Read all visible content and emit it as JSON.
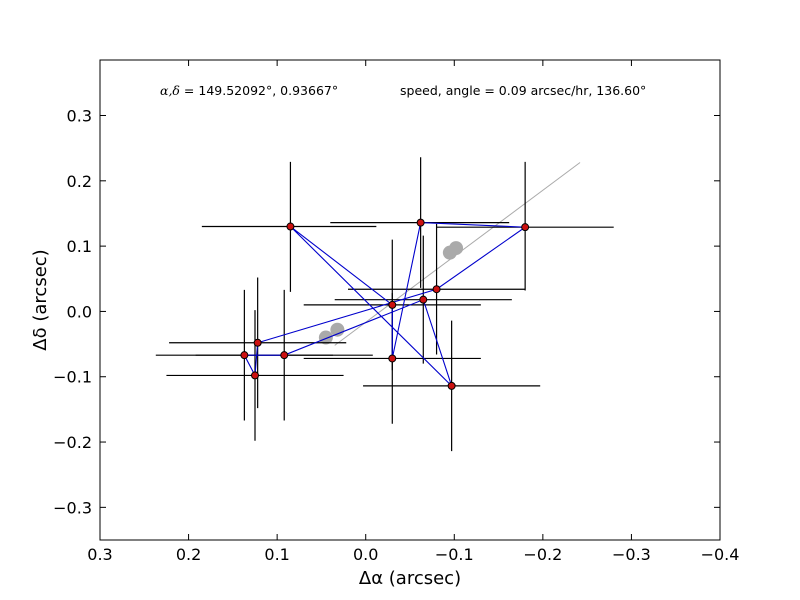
{
  "chart_data": {
    "type": "scatter",
    "title": "",
    "xlabel": "Δα (arcsec)",
    "ylabel": "Δδ (arcsec)",
    "xlim": [
      0.3,
      -0.4
    ],
    "ylim": [
      -0.35,
      0.385
    ],
    "x_ticks": [
      0.3,
      0.2,
      0.1,
      0.0,
      -0.1,
      -0.2,
      -0.3,
      -0.4
    ],
    "x_tick_labels": [
      "0.3",
      "0.2",
      "0.1",
      "0.0",
      "−0.1",
      "−0.2",
      "−0.3",
      "−0.4"
    ],
    "y_ticks": [
      -0.3,
      -0.2,
      -0.1,
      0.0,
      0.1,
      0.2,
      0.3
    ],
    "y_tick_labels": [
      "−0.3",
      "−0.2",
      "−0.1",
      "0.0",
      "0.1",
      "0.2",
      "0.3"
    ],
    "grid": false,
    "annotations": {
      "coord_prefix": "α,δ",
      "coord_text": " = 149.52092°, 0.93667°",
      "speed_text": "speed, angle = 0.09 arcsec/hr, 136.60°"
    },
    "points": [
      {
        "x": 0.085,
        "y": 0.13,
        "x_lo": 0.185,
        "x_hi": -0.012,
        "y_lo": 0.03,
        "y_hi": 0.229
      },
      {
        "x": -0.062,
        "y": 0.136,
        "x_lo": 0.04,
        "x_hi": -0.162,
        "y_lo": 0.036,
        "y_hi": 0.236
      },
      {
        "x": -0.18,
        "y": 0.129,
        "x_lo": -0.08,
        "x_hi": -0.28,
        "y_lo": 0.032,
        "y_hi": 0.229
      },
      {
        "x": -0.08,
        "y": 0.034,
        "x_lo": 0.02,
        "x_hi": -0.18,
        "y_lo": -0.066,
        "y_hi": 0.134
      },
      {
        "x": -0.065,
        "y": 0.018,
        "x_lo": 0.035,
        "x_hi": -0.165,
        "y_lo": -0.08,
        "y_hi": 0.116
      },
      {
        "x": -0.03,
        "y": 0.01,
        "x_lo": 0.07,
        "x_hi": -0.13,
        "y_lo": -0.09,
        "y_hi": 0.11
      },
      {
        "x": 0.122,
        "y": -0.048,
        "x_lo": 0.222,
        "x_hi": 0.022,
        "y_lo": -0.148,
        "y_hi": 0.052
      },
      {
        "x": 0.137,
        "y": -0.067,
        "x_lo": 0.237,
        "x_hi": 0.037,
        "y_lo": -0.167,
        "y_hi": 0.033
      },
      {
        "x": 0.092,
        "y": -0.067,
        "x_lo": 0.192,
        "x_hi": -0.008,
        "y_lo": -0.167,
        "y_hi": 0.033
      },
      {
        "x": -0.03,
        "y": -0.072,
        "x_lo": 0.07,
        "x_hi": -0.13,
        "y_lo": -0.172,
        "y_hi": 0.028
      },
      {
        "x": 0.125,
        "y": -0.098,
        "x_lo": 0.225,
        "x_hi": 0.025,
        "y_lo": -0.198,
        "y_hi": 0.002
      },
      {
        "x": -0.097,
        "y": -0.114,
        "x_lo": 0.003,
        "x_hi": -0.197,
        "y_lo": -0.214,
        "y_hi": -0.014
      }
    ],
    "connection_order": [
      0,
      5,
      9,
      1,
      2,
      3,
      6,
      10,
      7,
      8,
      4,
      11,
      0
    ],
    "trend_line": {
      "x": [
        0.035,
        -0.242
      ],
      "y": [
        -0.052,
        0.228
      ]
    },
    "trend_markers": [
      {
        "x": 0.045,
        "y": -0.04
      },
      {
        "x": 0.032,
        "y": -0.028
      },
      {
        "x": -0.095,
        "y": 0.09
      },
      {
        "x": -0.102,
        "y": 0.097
      }
    ],
    "colors": {
      "point_fill": "#cc1111",
      "point_edge": "#000000",
      "error_bar": "#000000",
      "connect_line": "#0000cc",
      "trend": "#aaaaaa"
    }
  }
}
